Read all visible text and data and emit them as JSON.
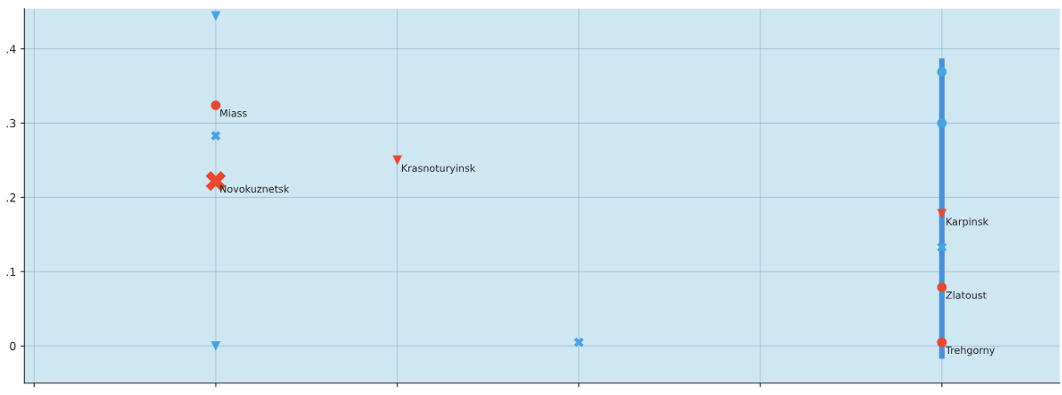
{
  "chart_data": {
    "type": "scatter",
    "categories": [
      null,
      null,
      null,
      null,
      null,
      null
    ],
    "ylim": [
      -0.05,
      0.454
    ],
    "yticks": [
      0,
      {
        "value": 0.1,
        "label": ".1"
      },
      {
        "value": 0.2,
        "label": ".2"
      },
      {
        "value": 0.3,
        "label": ".3"
      },
      {
        "value": 0.4,
        "label": ".4"
      }
    ],
    "grid": true,
    "series": [
      {
        "type": "bar",
        "color": "#4a90d9",
        "values": [
          null,
          null,
          null,
          null,
          null,
          0.404
        ],
        "base": [
          null,
          null,
          null,
          null,
          null,
          -0.017
        ]
      },
      {
        "name": "Miass",
        "color": "#e8492f",
        "values": [
          null,
          0.324,
          null,
          null,
          null,
          null
        ],
        "marker": "circle"
      },
      {
        "name": "Zlatoust",
        "color": "#e8492f",
        "values": [
          null,
          null,
          null,
          null,
          null,
          0.079
        ],
        "marker": "circle"
      },
      {
        "name": "Trehgorny",
        "color": "#e8492f",
        "values": [
          null,
          null,
          null,
          null,
          null,
          0.005
        ],
        "marker": "circle"
      },
      {
        "name": "Novokuznetsk",
        "color": "#e8492f",
        "values": [
          null,
          0.222,
          null,
          null,
          null,
          null
        ],
        "marker": "cross"
      },
      {
        "name": "Krasnoturyinsk",
        "color": "#e8492f",
        "values": [
          null,
          null,
          0.25,
          null,
          null,
          null
        ],
        "marker": "triangle"
      },
      {
        "name": "Karpinsk",
        "color": "#e8492f",
        "values": [
          null,
          null,
          null,
          null,
          null,
          0.178
        ],
        "marker": "triangle"
      },
      {
        "color": "#4aa3df",
        "values": [
          null,
          0.444,
          null,
          null,
          null,
          null
        ],
        "marker": "triangle"
      },
      {
        "color": "#4aa3df",
        "values": [
          null,
          0,
          null,
          null,
          null,
          null
        ],
        "marker": "triangle"
      },
      {
        "color": "#4aa3df",
        "values": [
          null,
          0.283,
          null,
          0.005,
          null,
          0.133
        ],
        "marker": "cross"
      },
      {
        "color": "#4aa3df",
        "values": [
          null,
          null,
          null,
          null,
          null,
          0.369
        ],
        "marker": "circle"
      },
      {
        "color": "#4aa3df",
        "values": [
          null,
          null,
          null,
          null,
          null,
          0.3
        ],
        "marker": "circle"
      }
    ]
  }
}
